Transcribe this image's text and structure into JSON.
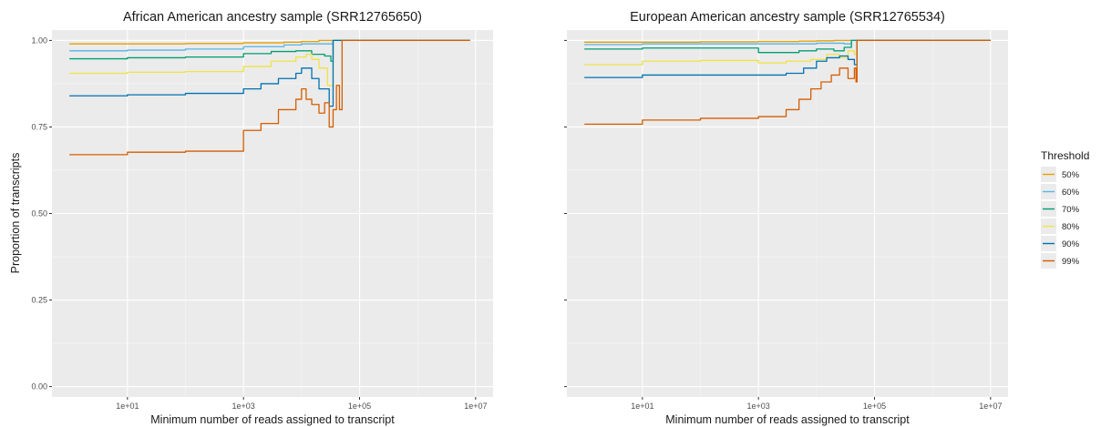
{
  "chart_data": {
    "type": "line",
    "x_scale": "log10",
    "xlim": [
      0.5,
      20000000
    ],
    "ylim": [
      -0.03,
      1.03
    ],
    "grid": true,
    "ylabel": "Proportion of transcripts",
    "yticks": [
      {
        "value": 0.0,
        "label": "0.00"
      },
      {
        "value": 0.25,
        "label": "0.25"
      },
      {
        "value": 0.5,
        "label": "0.50"
      },
      {
        "value": 0.75,
        "label": "0.75"
      },
      {
        "value": 1.0,
        "label": "1.00"
      }
    ],
    "xticks": [
      {
        "value": 10,
        "label": "1e+01"
      },
      {
        "value": 1000,
        "label": "1e+03"
      },
      {
        "value": 100000,
        "label": "1e+05"
      },
      {
        "value": 10000000,
        "label": "1e+07"
      }
    ],
    "legend": {
      "title": "Threshold",
      "placement": "right",
      "entries": [
        {
          "label": "50%",
          "color": "#E69F00"
        },
        {
          "label": "60%",
          "color": "#56B4E9"
        },
        {
          "label": "70%",
          "color": "#009E73"
        },
        {
          "label": "80%",
          "color": "#F0E442"
        },
        {
          "label": "90%",
          "color": "#0072B2"
        },
        {
          "label": "99%",
          "color": "#D55E00"
        }
      ]
    },
    "panels": [
      {
        "title": "African American ancestry sample (SRR12765650)",
        "xlabel": "Minimum number of reads assigned to transcript",
        "series": [
          {
            "name": "50%",
            "x": [
              1,
              10,
              100,
              1000,
              5000,
              10000,
              20000,
              50000,
              8000000
            ],
            "y": [
              0.99,
              0.99,
              0.991,
              0.993,
              0.995,
              0.997,
              1.0,
              1.0,
              1.0
            ]
          },
          {
            "name": "60%",
            "x": [
              1,
              10,
              100,
              1000,
              5000,
              10000,
              30000,
              35000,
              8000000
            ],
            "y": [
              0.97,
              0.972,
              0.975,
              0.982,
              0.987,
              0.99,
              0.99,
              1.0,
              1.0
            ]
          },
          {
            "name": "70%",
            "x": [
              1,
              10,
              100,
              1000,
              3000,
              8000,
              15000,
              25000,
              32000,
              35000,
              8000000
            ],
            "y": [
              0.947,
              0.95,
              0.952,
              0.962,
              0.968,
              0.97,
              0.96,
              0.955,
              0.94,
              1.0,
              1.0
            ]
          },
          {
            "name": "80%",
            "x": [
              1,
              10,
              100,
              1000,
              3000,
              8000,
              12000,
              15000,
              20000,
              28000,
              35000,
              8000000
            ],
            "y": [
              0.905,
              0.908,
              0.91,
              0.925,
              0.94,
              0.952,
              0.96,
              0.945,
              0.92,
              0.87,
              1.0,
              1.0
            ]
          },
          {
            "name": "90%",
            "x": [
              1,
              10,
              100,
              1000,
              2000,
              4000,
              8000,
              10000,
              15000,
              20000,
              30000,
              35000,
              8000000
            ],
            "y": [
              0.84,
              0.843,
              0.847,
              0.86,
              0.875,
              0.89,
              0.905,
              0.92,
              0.89,
              0.86,
              0.81,
              1.0,
              1.0
            ]
          },
          {
            "name": "99%",
            "x": [
              1,
              10,
              100,
              1000,
              2000,
              4000,
              8000,
              10000,
              12000,
              15000,
              20000,
              25000,
              30000,
              35000,
              40000,
              45000,
              50000,
              8000000
            ],
            "y": [
              0.67,
              0.677,
              0.68,
              0.74,
              0.76,
              0.8,
              0.83,
              0.86,
              0.83,
              0.815,
              0.79,
              0.82,
              0.75,
              0.8,
              0.87,
              0.8,
              1.0,
              1.0
            ]
          }
        ]
      },
      {
        "title": "European American ancestry sample (SRR12765534)",
        "xlabel": "Minimum number of reads assigned to transcript",
        "series": [
          {
            "name": "50%",
            "x": [
              1,
              10,
              100,
              1000,
              5000,
              10000,
              20000,
              50000,
              10000000
            ],
            "y": [
              0.995,
              0.995,
              0.996,
              0.997,
              0.998,
              0.999,
              1.0,
              1.0,
              1.0
            ]
          },
          {
            "name": "60%",
            "x": [
              1,
              10,
              100,
              1000,
              5000,
              10000,
              30000,
              40000,
              10000000
            ],
            "y": [
              0.988,
              0.99,
              0.99,
              0.99,
              0.99,
              0.992,
              0.99,
              1.0,
              1.0
            ]
          },
          {
            "name": "70%",
            "x": [
              1,
              10,
              100,
              1000,
              5000,
              10000,
              20000,
              30000,
              40000,
              10000000
            ],
            "y": [
              0.975,
              0.978,
              0.978,
              0.965,
              0.97,
              0.975,
              0.97,
              0.98,
              1.0,
              1.0
            ]
          },
          {
            "name": "80%",
            "x": [
              1,
              10,
              100,
              1000,
              3000,
              8000,
              15000,
              25000,
              35000,
              45000,
              50000,
              10000000
            ],
            "y": [
              0.93,
              0.94,
              0.942,
              0.935,
              0.94,
              0.945,
              0.96,
              0.95,
              0.97,
              0.96,
              1.0,
              1.0
            ]
          },
          {
            "name": "90%",
            "x": [
              1,
              10,
              100,
              1000,
              3000,
              6000,
              10000,
              15000,
              25000,
              35000,
              45000,
              50000,
              10000000
            ],
            "y": [
              0.893,
              0.9,
              0.9,
              0.9,
              0.905,
              0.92,
              0.94,
              0.95,
              0.955,
              0.945,
              0.93,
              1.0,
              1.0
            ]
          },
          {
            "name": "99%",
            "x": [
              1,
              10,
              100,
              1000,
              3000,
              5000,
              8000,
              12000,
              18000,
              25000,
              35000,
              45000,
              48000,
              50000,
              10000000
            ],
            "y": [
              0.758,
              0.77,
              0.775,
              0.78,
              0.8,
              0.83,
              0.86,
              0.88,
              0.9,
              0.92,
              0.89,
              0.92,
              0.88,
              1.0,
              1.0
            ]
          }
        ]
      }
    ]
  }
}
